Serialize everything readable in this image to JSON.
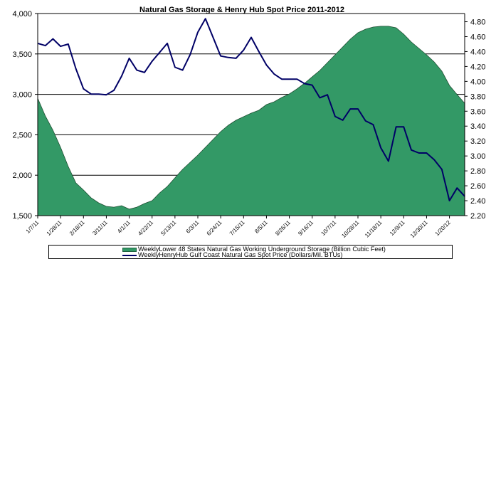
{
  "chart_data": {
    "type": "area+line",
    "title": "Natural Gas Storage & Henry Hub Spot Price 2011-2012",
    "xlabel": "",
    "ylabel_left": "",
    "ylabel_right": "",
    "x_tick_labels": [
      "1/7/11",
      "1/28/11",
      "2/18/11",
      "3/11/11",
      "4/1/11",
      "4/22/11",
      "5/13/11",
      "6/3/11",
      "6/24/11",
      "7/15/11",
      "8/5/11",
      "8/26/11",
      "9/16/11",
      "10/7/11",
      "10/28/11",
      "11/18/11",
      "12/9/11",
      "12/30/11",
      "1/20/12"
    ],
    "x_tick_every_n_weeks": 3,
    "n_points": 57,
    "y_left": {
      "lim": [
        1500,
        4000
      ],
      "ticks": [
        1500,
        2000,
        2500,
        3000,
        3500,
        4000
      ],
      "tick_labels": [
        "1,500",
        "2,000",
        "2,500",
        "3,000",
        "3,500",
        "4,000"
      ]
    },
    "y_right": {
      "lim": [
        2.2,
        4.91
      ],
      "ticks": [
        2.2,
        2.4,
        2.6,
        2.8,
        3.0,
        3.2,
        3.4,
        3.6,
        3.8,
        4.0,
        4.2,
        4.4,
        4.6,
        4.8
      ],
      "tick_labels": [
        "2.20",
        "2.40",
        "2.60",
        "2.80",
        "3.00",
        "3.20",
        "3.40",
        "3.60",
        "3.80",
        "4.00",
        "4.20",
        "4.40",
        "4.60",
        "4.80"
      ]
    },
    "grid": "horizontal (left axis majors)",
    "legend_position": "bottom",
    "series": [
      {
        "name": "WeeklyLower 48 States Natural Gas Working Underground Storage  (Billion Cubic Feet)",
        "type": "area",
        "axis": "left",
        "color": "#339966",
        "values": [
          2952,
          2732,
          2556,
          2345,
          2107,
          1905,
          1817,
          1720,
          1658,
          1614,
          1605,
          1623,
          1580,
          1605,
          1650,
          1685,
          1782,
          1861,
          1967,
          2072,
          2160,
          2248,
          2345,
          2442,
          2539,
          2618,
          2680,
          2724,
          2768,
          2803,
          2873,
          2908,
          2961,
          3005,
          3067,
          3137,
          3217,
          3296,
          3393,
          3489,
          3586,
          3683,
          3762,
          3806,
          3833,
          3842,
          3842,
          3824,
          3745,
          3648,
          3569,
          3489,
          3401,
          3287,
          3110,
          2997,
          2890
        ]
      },
      {
        "name": "WeeklyHenryHub Gulf Coast Natural Gas Spot Price (Dollars/Mil. BTUs)",
        "type": "line",
        "axis": "right",
        "color": "#000066",
        "values": [
          4.51,
          4.48,
          4.57,
          4.47,
          4.5,
          4.17,
          3.9,
          3.83,
          3.83,
          3.82,
          3.88,
          4.07,
          4.31,
          4.15,
          4.12,
          4.27,
          4.39,
          4.51,
          4.19,
          4.15,
          4.36,
          4.66,
          4.84,
          4.59,
          4.34,
          4.32,
          4.31,
          4.42,
          4.59,
          4.4,
          4.22,
          4.1,
          4.03,
          4.03,
          4.03,
          3.97,
          3.95,
          3.78,
          3.82,
          3.53,
          3.48,
          3.63,
          3.63,
          3.47,
          3.42,
          3.11,
          2.93,
          3.39,
          3.39,
          3.08,
          3.04,
          3.04,
          2.95,
          2.82,
          2.4,
          2.57,
          2.46
        ]
      }
    ]
  },
  "legend": {
    "storage_label": "WeeklyLower 48 States Natural Gas Working Underground Storage  (Billion Cubic Feet)",
    "price_label": "WeeklyHenryHub Gulf Coast Natural Gas Spot Price (Dollars/Mil. BTUs)"
  }
}
